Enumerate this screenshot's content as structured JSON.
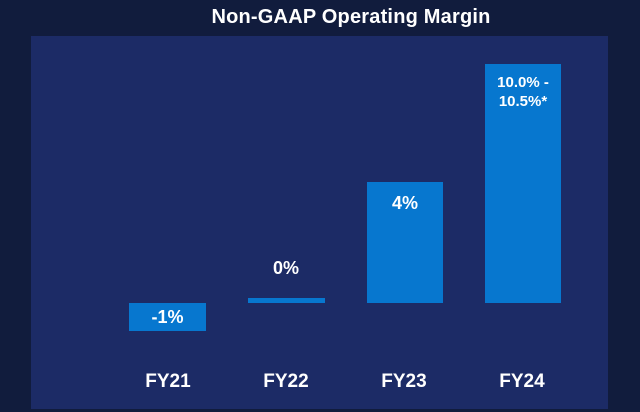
{
  "colors": {
    "bg": "#111C3D",
    "panel": "#1C2B66",
    "bar": "#0777CF",
    "text": "#FFFFFF"
  },
  "chart_data": {
    "type": "bar",
    "title": "Non-GAAP Operating Margin",
    "categories": [
      "FY21",
      "FY22",
      "FY23",
      "FY24"
    ],
    "series": [
      {
        "name": "Non-GAAP Operating Margin (%)",
        "values": [
          -1,
          0,
          4,
          10.25
        ]
      }
    ],
    "bars": [
      {
        "category": "FY21",
        "value": -1,
        "label": "-1%",
        "label_placement": "inside-middle"
      },
      {
        "category": "FY22",
        "value": 0,
        "label": "0%",
        "label_placement": "above-bar"
      },
      {
        "category": "FY23",
        "value": 4,
        "label": "4%",
        "label_placement": "inside-top"
      },
      {
        "category": "FY24",
        "value_min": 10.0,
        "value_max": 10.5,
        "label": "10.0% -\n10.5%*",
        "label_placement": "inside-top"
      }
    ],
    "ylim": [
      -1.5,
      11.5
    ],
    "baseline": 0,
    "grid": false,
    "legend": false,
    "y_axis_visible": false,
    "bar_color": "#0777CF",
    "label_color": "#FFFFFF"
  }
}
